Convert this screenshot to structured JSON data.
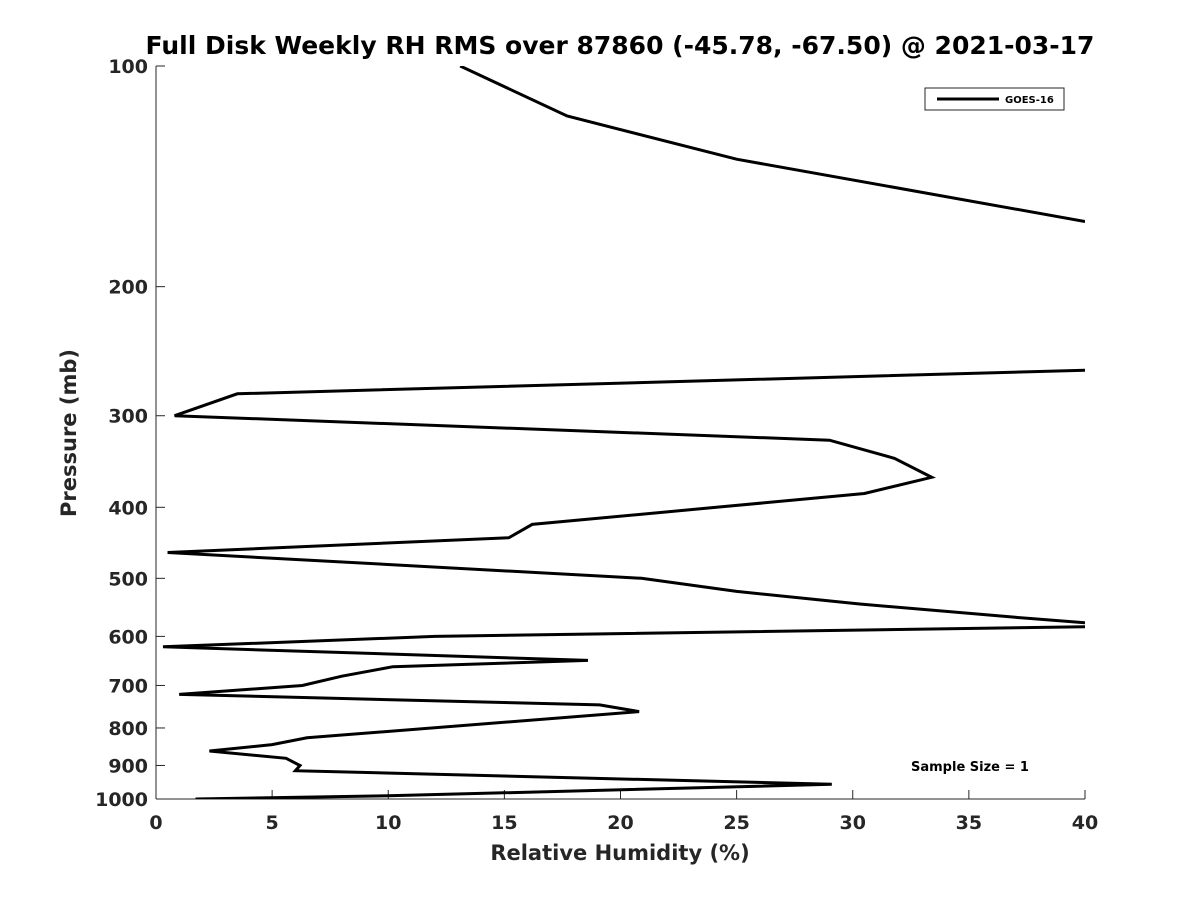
{
  "chart_data": {
    "type": "line",
    "title": "Full Disk Weekly RH RMS over 87860 (-45.78, -67.50) @ 2021-03-17",
    "xlabel": "Relative Humidity (%)",
    "ylabel": "Pressure (mb)",
    "xlim": [
      0,
      40
    ],
    "ylim": [
      1000,
      100
    ],
    "y_scale": "log",
    "x_ticks": [
      "0",
      "5",
      "10",
      "15",
      "20",
      "25",
      "30",
      "35",
      "40"
    ],
    "y_ticks": [
      "100",
      "200",
      "300",
      "400",
      "500",
      "600",
      "700",
      "800",
      "900",
      "1000"
    ],
    "grid": false,
    "legend_position": "top-right",
    "annotation": "Sample Size = 1",
    "series": [
      {
        "name": "GOES-16",
        "color": "#000000",
        "x": [
          13.1,
          17.7,
          25.0,
          40.0,
          null,
          40.0,
          3.5,
          0.8,
          29.0,
          31.8,
          33.4,
          30.5,
          16.2,
          15.2,
          0.5,
          20.9,
          25.0,
          30.3,
          37.0,
          40.0,
          null,
          40.0,
          12.0,
          0.3,
          18.6,
          10.2,
          8.0,
          6.3,
          1.0,
          19.1,
          20.8,
          6.5,
          5.0,
          2.3,
          5.6,
          6.2,
          6.0,
          29.1,
          10.0,
          1.7
        ],
        "y": [
          100,
          117,
          134,
          163,
          null,
          260,
          280,
          300,
          324,
          343,
          364,
          383,
          422,
          440,
          461,
          500,
          521,
          542,
          565,
          575,
          null,
          582,
          600,
          620,
          647,
          660,
          680,
          700,
          720,
          744,
          760,
          825,
          843,
          860,
          880,
          900,
          915,
          955,
          990,
          1000
        ]
      }
    ]
  }
}
